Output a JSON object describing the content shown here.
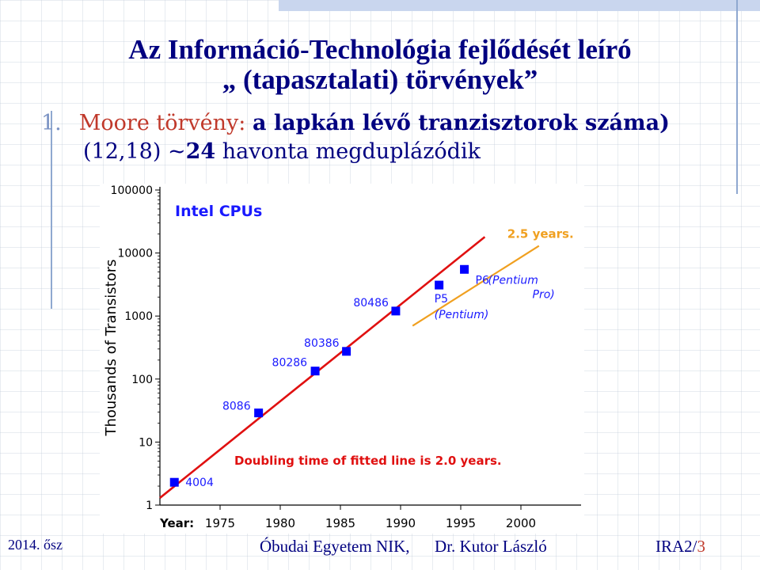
{
  "slide": {
    "title_line1": "Az Információ-Technológia fejlődését leíró",
    "title_line2": "„ (tapasztalati) törvények”",
    "bullet_number": "1.",
    "bullet_red": "Moore törvény:",
    "bullet_rest": "a lapkán lévő tranzisztorok száma)",
    "bullet_line2_prefix": "(12,18) ~",
    "bullet_line2_bold": "24",
    "bullet_line2_suffix": " havonta megduplázódik"
  },
  "footer": {
    "semester": "2014. ősz",
    "institution": "Óbudai Egyetem NIK,",
    "author": "Dr. Kutor László",
    "course": "IRA2/",
    "page": "3"
  },
  "colors": {
    "title": "#000080",
    "fit_line": "#e01010",
    "trend_line": "#f0a020",
    "marker": "#0000ff",
    "label": "#1a1aff"
  },
  "chart_data": {
    "type": "scatter",
    "title": "Intel CPUs",
    "ylabel": "Thousands of Transistors",
    "xlabel": "Year:",
    "yscale": "log",
    "ylim": [
      1,
      100000
    ],
    "xlim": [
      1970,
      2005
    ],
    "yticks": [
      1,
      10,
      100,
      1000,
      10000,
      100000
    ],
    "ytick_labels": [
      "1",
      "10",
      "100",
      "1000",
      "10000",
      "100000"
    ],
    "xticks": [
      1975,
      1980,
      1985,
      1990,
      1995,
      2000
    ],
    "xtick_labels": [
      "1975",
      "1980",
      "1985",
      "1990",
      "1995",
      "2000"
    ],
    "points": [
      {
        "label": "4004",
        "x": 1971.2,
        "y": 2.3
      },
      {
        "label": "8086",
        "x": 1978.2,
        "y": 29
      },
      {
        "label": "80286",
        "x": 1982.9,
        "y": 134
      },
      {
        "label": "80386",
        "x": 1985.5,
        "y": 275
      },
      {
        "label": "80486",
        "x": 1989.6,
        "y": 1200
      },
      {
        "label": "P5",
        "x": 1993.2,
        "y": 3100
      },
      {
        "label": "P6",
        "x": 1995.3,
        "y": 5500
      }
    ],
    "point_annotations": {
      "P5": "(Pentium)",
      "P6": "(Pentium Pro)"
    },
    "fit_line": {
      "name": "Doubling time of fitted line is 2.0 years.",
      "x": [
        1970,
        1997
      ],
      "y": [
        1.3,
        18000
      ]
    },
    "trend_line": {
      "name": "2.5 years.",
      "x": [
        1991,
        2001.5
      ],
      "y": [
        700,
        13000
      ]
    },
    "annotation": "Doubling time of fitted line is 2.0 years."
  }
}
